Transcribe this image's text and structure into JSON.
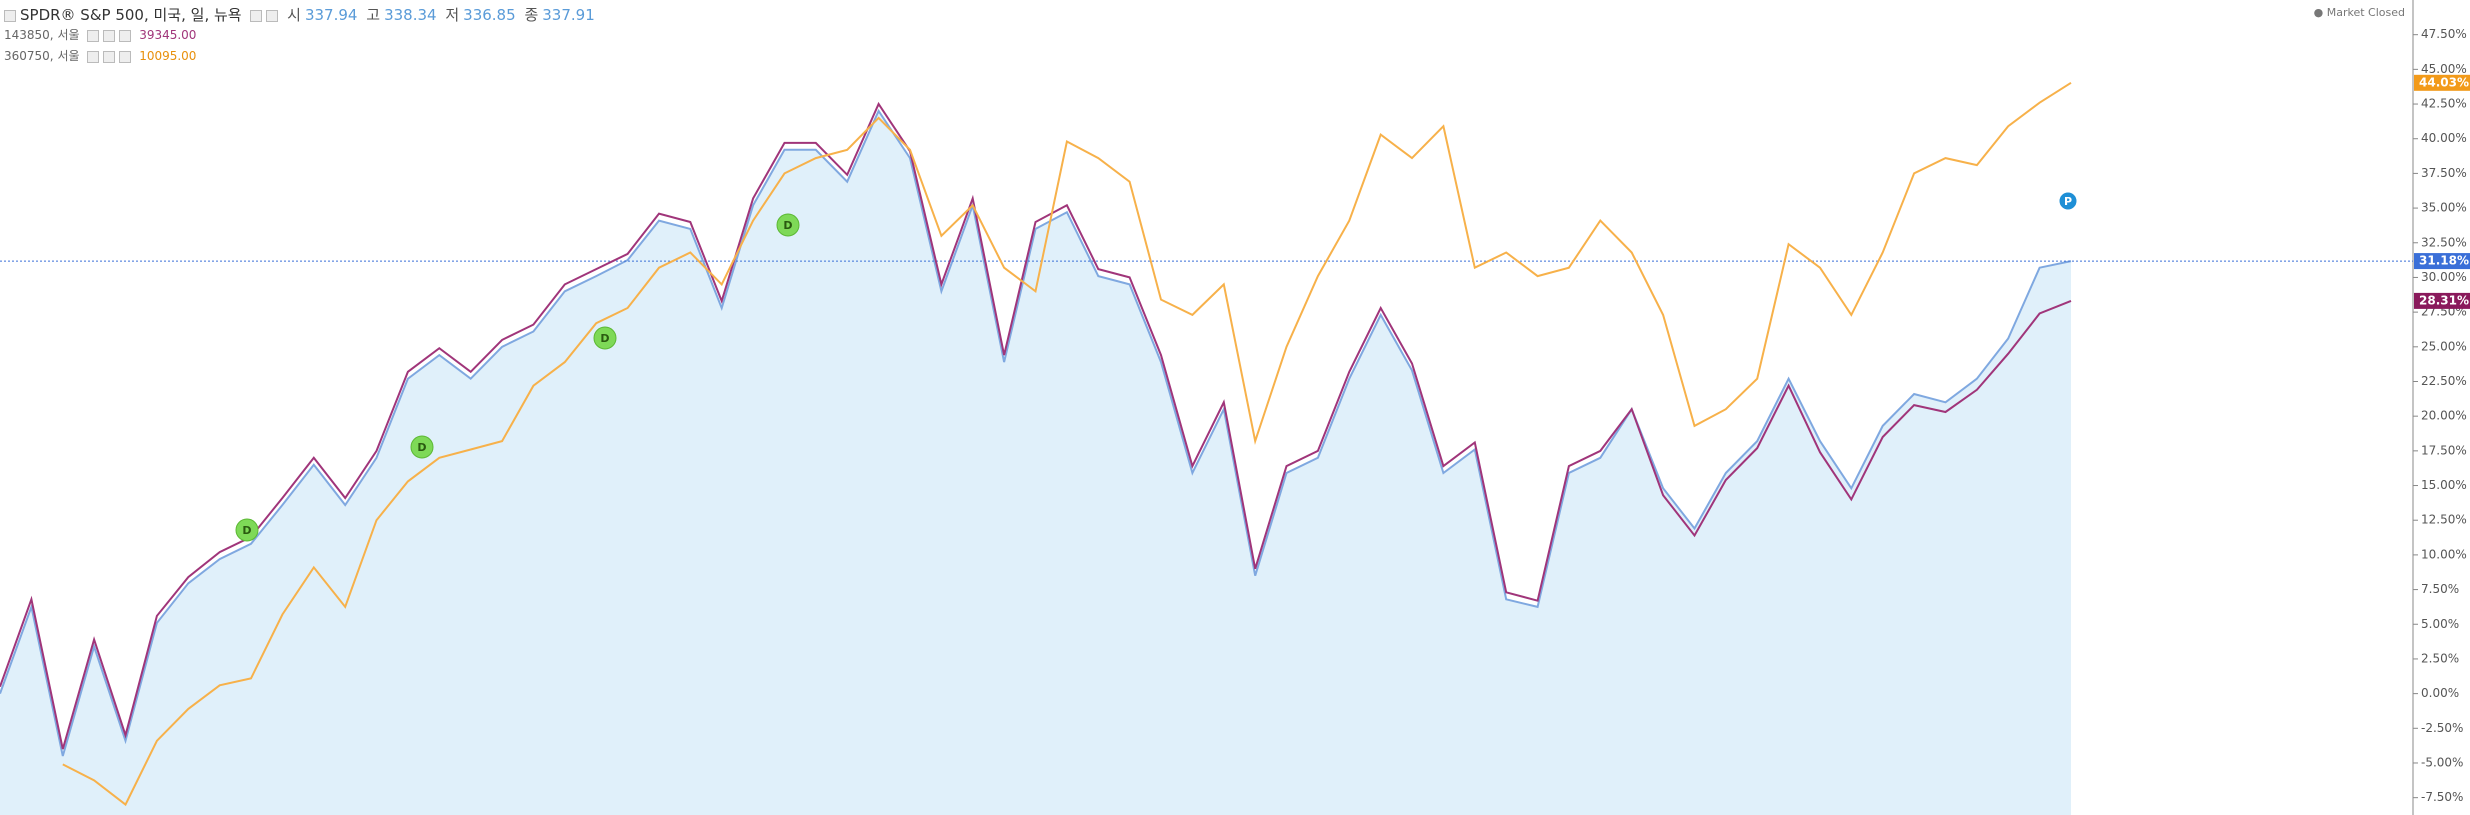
{
  "header": {
    "symbol": "SPDR® S&P 500, 미국, 일, 뉴욕",
    "ohlc": [
      {
        "label": "시",
        "value": "337.94"
      },
      {
        "label": "고",
        "value": "338.34"
      },
      {
        "label": "저",
        "value": "336.85"
      },
      {
        "label": "종",
        "value": "337.91"
      }
    ],
    "compare": [
      {
        "symbol": "143850, 서울",
        "value": "39345.00"
      },
      {
        "symbol": "360750, 서울",
        "value": "10095.00"
      }
    ],
    "status": "Market Closed"
  },
  "chart_data": {
    "type": "line",
    "ylim": [
      -8.75,
      50
    ],
    "yticks": [
      {
        "value": -7.5,
        "label": "-7.50%"
      },
      {
        "value": -5,
        "label": "-5.00%"
      },
      {
        "value": -2.5,
        "label": "-2.50%"
      },
      {
        "value": 0,
        "label": "0.00%"
      },
      {
        "value": 2.5,
        "label": "2.50%"
      },
      {
        "value": 5,
        "label": "5.00%"
      },
      {
        "value": 7.5,
        "label": "7.50%"
      },
      {
        "value": 10,
        "label": "10.00%"
      },
      {
        "value": 12.5,
        "label": "12.50%"
      },
      {
        "value": 15,
        "label": "15.00%"
      },
      {
        "value": 17.5,
        "label": "17.50%"
      },
      {
        "value": 20,
        "label": "20.00%"
      },
      {
        "value": 22.5,
        "label": "22.50%"
      },
      {
        "value": 25,
        "label": "25.00%"
      },
      {
        "value": 27.5,
        "label": "27.50%"
      },
      {
        "value": 30,
        "label": "30.00%"
      },
      {
        "value": 32.5,
        "label": "32.50%"
      },
      {
        "value": 35,
        "label": "35.00%"
      },
      {
        "value": 37.5,
        "label": "37.50%"
      },
      {
        "value": 40,
        "label": "40.00%"
      },
      {
        "value": 42.5,
        "label": "42.50%"
      },
      {
        "value": 45,
        "label": "45.00%"
      },
      {
        "value": 47.5,
        "label": "47.50%"
      }
    ],
    "series": [
      {
        "color": "#7fa8e0",
        "area": "#e0f0fa",
        "price_label": "31.18%",
        "values": [
          0,
          6.25,
          -4.5,
          3.4,
          -3.4,
          5.1,
          7.95,
          9.7,
          10.8,
          13.6,
          16.5,
          13.6,
          17,
          22.7,
          24.4,
          22.7,
          25,
          26.1,
          29,
          30.1,
          31.25,
          34.1,
          33.5,
          27.8,
          35.2,
          39.2,
          39.2,
          36.9,
          42,
          38.6,
          29,
          35.2,
          23.9,
          33.5,
          34.7,
          30.1,
          29.5,
          23.9,
          15.9,
          20.5,
          8.5,
          15.9,
          17,
          22.7,
          27.3,
          23.3,
          15.9,
          17.6,
          6.8,
          6.25,
          15.9,
          17,
          20.5,
          14.8,
          11.9,
          15.9,
          18.2,
          22.7,
          18.2,
          14.8,
          19.3,
          21.6,
          21,
          22.7,
          25.6,
          30.7,
          31.18
        ]
      },
      {
        "color": "#a0357a",
        "price_label": "28.31%",
        "values": [
          0.5,
          6.8,
          -4,
          3.9,
          -3,
          5.6,
          8.4,
          10.2,
          11.3,
          14.1,
          17,
          14.1,
          17.5,
          23.2,
          24.9,
          23.2,
          25.5,
          26.6,
          29.5,
          30.6,
          31.7,
          34.6,
          34,
          28.3,
          35.7,
          39.7,
          39.7,
          37.4,
          42.5,
          39.1,
          29.5,
          35.7,
          24.4,
          34,
          35.2,
          30.6,
          30,
          24.4,
          16.4,
          21,
          9,
          16.4,
          17.5,
          23.2,
          27.8,
          23.8,
          16.4,
          18.1,
          7.3,
          6.7,
          16.4,
          17.5,
          20.5,
          14.3,
          11.4,
          15.4,
          17.7,
          22.2,
          17.4,
          14,
          18.5,
          20.8,
          20.3,
          21.9,
          24.5,
          27.4,
          28.31
        ]
      },
      {
        "color": "#f7b14a",
        "price_label": "44.03%",
        "values": [
          null,
          null,
          -5.1,
          -6.25,
          -8,
          -3.4,
          -1.1,
          0.6,
          1.1,
          5.7,
          9.1,
          6.25,
          12.5,
          15.3,
          17,
          17.6,
          18.2,
          22.2,
          23.9,
          26.7,
          27.8,
          30.7,
          31.8,
          29.5,
          34.1,
          37.5,
          38.6,
          39.2,
          41.5,
          39.2,
          33,
          35.2,
          30.7,
          29,
          39.8,
          38.6,
          36.9,
          28.4,
          27.3,
          29.5,
          18.2,
          25,
          30.1,
          34.1,
          40.3,
          38.6,
          40.9,
          30.7,
          31.8,
          30.1,
          30.7,
          34.1,
          31.8,
          27.3,
          19.3,
          20.5,
          22.7,
          32.4,
          30.7,
          27.3,
          31.8,
          37.5,
          38.6,
          38.1,
          40.9,
          42.6,
          44.03
        ]
      }
    ],
    "markers": [
      "D",
      "D",
      "D",
      "D",
      "P"
    ]
  }
}
